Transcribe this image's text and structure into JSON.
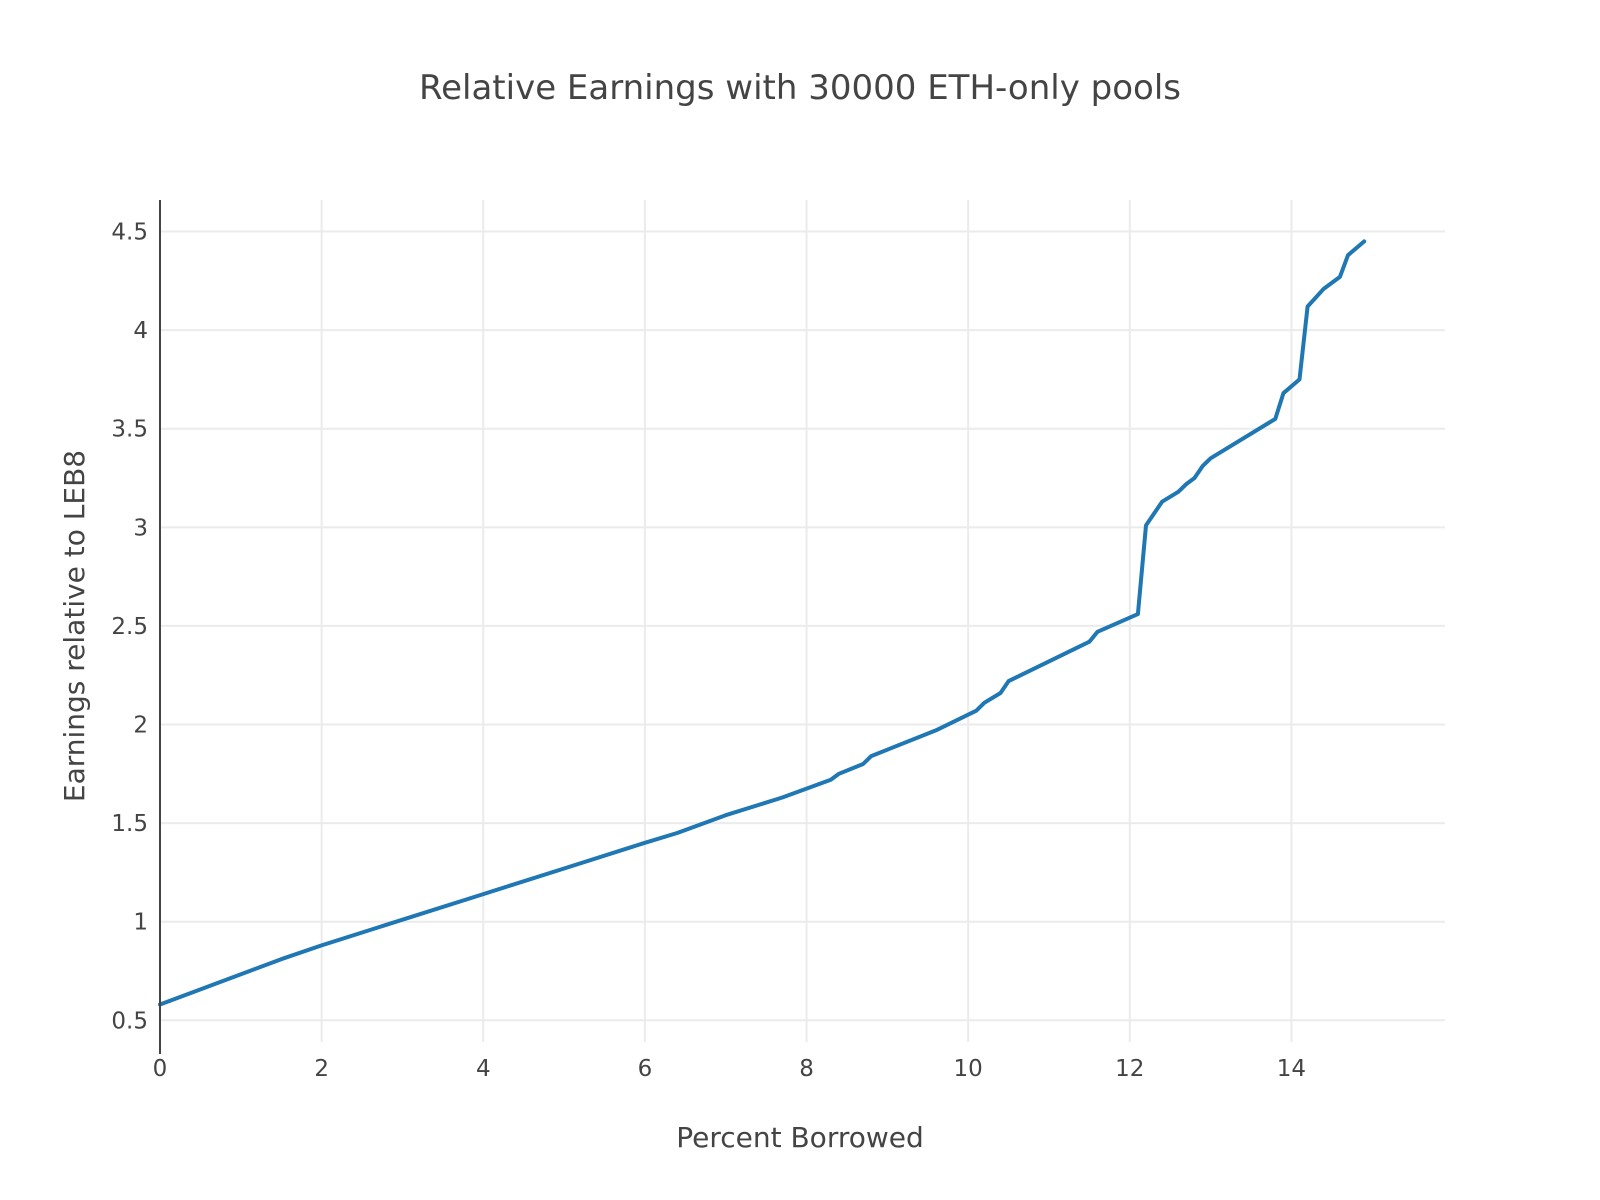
{
  "chart_data": {
    "type": "line",
    "title": "Relative Earnings with 30000 ETH-only pools",
    "xlabel": "Percent Borrowed",
    "ylabel": "Earnings relative to LEB8",
    "xlim": [
      0,
      15.9
    ],
    "ylim": [
      0.39,
      4.66
    ],
    "xticks": [
      0,
      2,
      4,
      6,
      8,
      10,
      12,
      14
    ],
    "xtick_labels": [
      "0",
      "2",
      "4",
      "6",
      "8",
      "10",
      "12",
      "14"
    ],
    "yticks": [
      0.5,
      1,
      1.5,
      2,
      2.5,
      3,
      3.5,
      4,
      4.5
    ],
    "ytick_labels": [
      "0.5",
      "1",
      "1.5",
      "2",
      "2.5",
      "3",
      "3.5",
      "4",
      "4.5"
    ],
    "grid": true,
    "series": [
      {
        "color": "#1f77b4",
        "x": [
          0,
          1.5,
          2,
          3,
          4,
          5,
          6,
          6.4,
          7,
          7.7,
          8.3,
          8.4,
          8.7,
          8.8,
          9.6,
          10.1,
          10.2,
          10.4,
          10.5,
          11.5,
          11.6,
          12.1,
          12.2,
          12.4,
          12.6,
          12.7,
          12.8,
          12.9,
          13.0,
          13.8,
          13.9,
          14.1,
          14.2,
          14.4,
          14.6,
          14.7,
          14.9
        ],
        "y": [
          0.58,
          0.81,
          0.88,
          1.01,
          1.14,
          1.27,
          1.4,
          1.45,
          1.54,
          1.63,
          1.72,
          1.75,
          1.8,
          1.84,
          1.97,
          2.07,
          2.11,
          2.16,
          2.22,
          2.42,
          2.47,
          2.56,
          3.01,
          3.13,
          3.18,
          3.22,
          3.25,
          3.31,
          3.35,
          3.55,
          3.68,
          3.75,
          4.12,
          4.21,
          4.27,
          4.38,
          4.45
        ]
      }
    ]
  }
}
